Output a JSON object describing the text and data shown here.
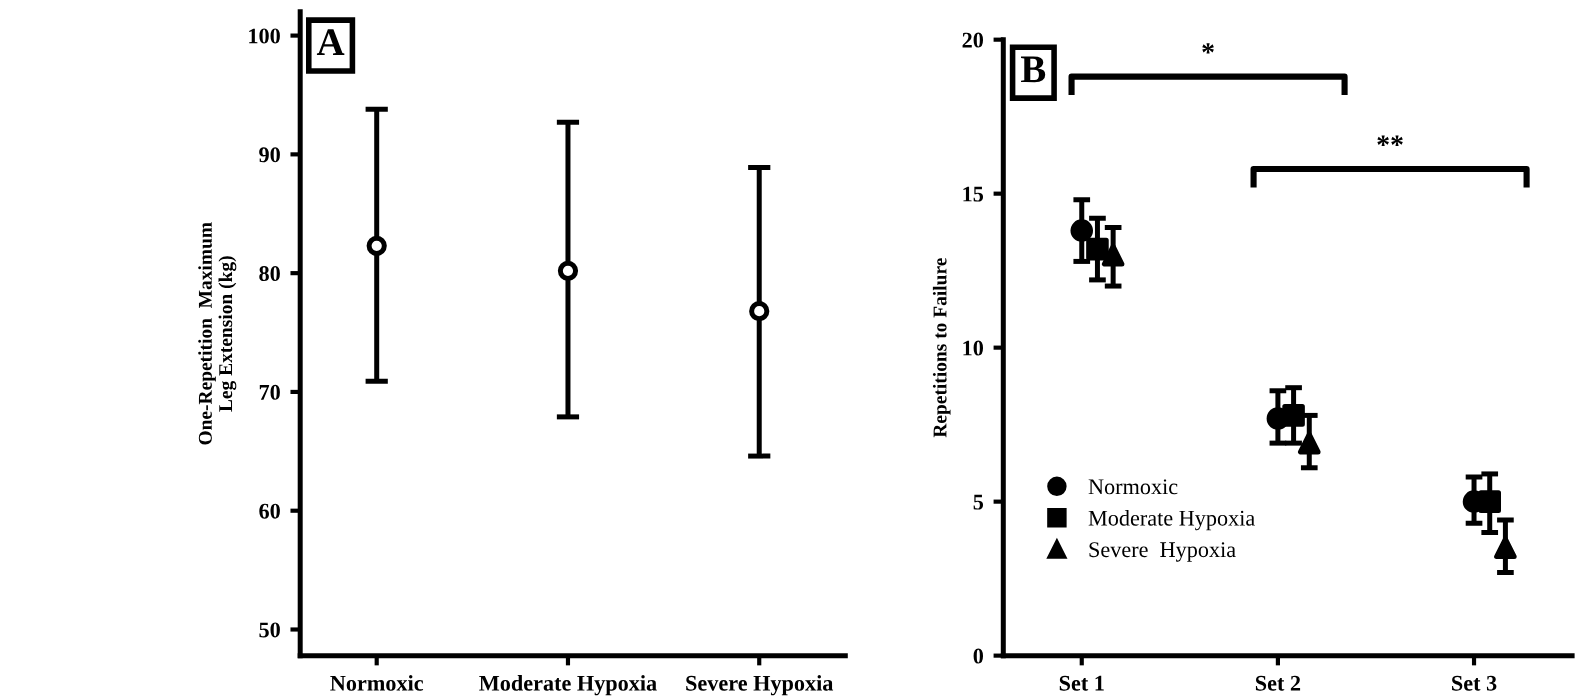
{
  "chart_data": [
    {
      "type": "scatter",
      "ylabel": "One-Repetition  Maximum\nLeg Extension (kg)",
      "annotations": [
        "A"
      ],
      "categories": [
        "Normoxic",
        "Moderate Hypoxia",
        "Severe Hypoxia"
      ],
      "series": [
        {
          "color": "#000000",
          "marker": "circle",
          "values": [
            82.3,
            80.2,
            76.8
          ],
          "errors": [
            [
              70.9,
              93.8
            ],
            [
              67.9,
              92.7
            ],
            [
              64.6,
              88.9
            ]
          ]
        }
      ],
      "ylim": [
        47.8,
        102
      ],
      "yticks": [
        50,
        60,
        70,
        80,
        90,
        100
      ],
      "grid": false,
      "legend": false
    },
    {
      "type": "scatter",
      "ylabel": "Repetitions to Failure",
      "annotations": [
        "B",
        "*",
        "**"
      ],
      "categories": [
        "Set 1",
        "Set 2",
        "Set 3"
      ],
      "series": [
        {
          "name": "Normoxic",
          "color": "#000000",
          "marker": "circle",
          "values": [
            13.8,
            7.7,
            5.0
          ],
          "errors": [
            [
              12.8,
              14.8
            ],
            [
              6.9,
              8.6
            ],
            [
              4.3,
              5.8
            ]
          ]
        },
        {
          "name": "Moderate Hypoxia",
          "color": "#000000",
          "marker": "square",
          "values": [
            13.2,
            7.8,
            5.0
          ],
          "errors": [
            [
              12.2,
              14.2
            ],
            [
              6.9,
              8.7
            ],
            [
              4.0,
              5.9
            ]
          ]
        },
        {
          "name": "Severe  Hypoxia",
          "color": "#000000",
          "marker": "triangle",
          "values": [
            13.0,
            6.9,
            3.5
          ],
          "errors": [
            [
              12.0,
              13.9
            ],
            [
              6.1,
              7.8
            ],
            [
              2.7,
              4.4
            ]
          ]
        }
      ],
      "ylim": [
        0,
        20
      ],
      "yticks": [
        0,
        5,
        10,
        15,
        20
      ],
      "grid": false,
      "legend": "bottom left"
    }
  ]
}
